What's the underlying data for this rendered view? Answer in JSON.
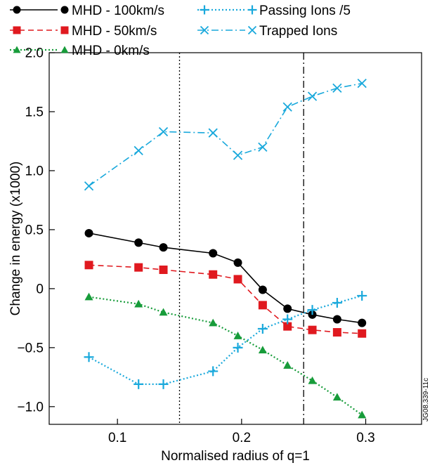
{
  "chart_data": {
    "type": "line",
    "title": "",
    "xlabel": "Normalised radius of q=1",
    "ylabel": "Change in energy (x1000)",
    "xlim": [
      0.045,
      0.345
    ],
    "ylim": [
      -1.15,
      2.0
    ],
    "x_ticks": [
      0.1,
      0.2,
      0.3
    ],
    "x_tick_labels": [
      "0.1",
      "0.2",
      "0.3"
    ],
    "y_ticks": [
      -1.0,
      -0.5,
      0,
      0.5,
      1.0,
      1.5,
      2.0
    ],
    "y_tick_labels": [
      "−1.0",
      "−0.5",
      "0",
      "0.5",
      "1.0",
      "1.5",
      "2.0"
    ],
    "grid": false,
    "legend_position": "top",
    "vertical_lines": [
      {
        "x": 0.15,
        "style": "dotted"
      },
      {
        "x": 0.25,
        "style": "dash-dot"
      }
    ],
    "x": [
      0.077,
      0.117,
      0.137,
      0.177,
      0.197,
      0.217,
      0.237,
      0.257,
      0.277,
      0.297
    ],
    "series": [
      {
        "name": "MHD - 100km/s",
        "color": "#000000",
        "marker": "circle",
        "line_style": "solid",
        "values": [
          0.47,
          0.39,
          0.35,
          0.3,
          0.22,
          -0.01,
          -0.17,
          -0.22,
          -0.26,
          -0.29
        ]
      },
      {
        "name": "MHD - 50km/s",
        "color": "#e0191f",
        "marker": "square",
        "line_style": "dashed",
        "values": [
          0.2,
          0.18,
          0.16,
          0.12,
          0.08,
          -0.14,
          -0.32,
          -0.35,
          -0.37,
          -0.38
        ]
      },
      {
        "name": "MHD - 0km/s",
        "color": "#179c3a",
        "marker": "triangle",
        "line_style": "dotted",
        "values": [
          -0.07,
          -0.13,
          -0.2,
          -0.29,
          -0.4,
          -0.52,
          -0.65,
          -0.78,
          -0.92,
          -1.07
        ]
      },
      {
        "name": "Passing Ions /5",
        "color": "#1aa9dc",
        "marker": "plus",
        "line_style": "dotted",
        "values": [
          -0.58,
          -0.81,
          -0.81,
          -0.7,
          -0.5,
          -0.34,
          -0.26,
          -0.18,
          -0.12,
          -0.06
        ]
      },
      {
        "name": "Trapped Ions",
        "color": "#1aa9dc",
        "marker": "x",
        "line_style": "dash-dot",
        "values": [
          0.87,
          1.17,
          1.33,
          1.32,
          1.13,
          1.2,
          1.54,
          1.63,
          1.7,
          1.74
        ]
      }
    ],
    "annotation": "JG08.339-11c"
  }
}
